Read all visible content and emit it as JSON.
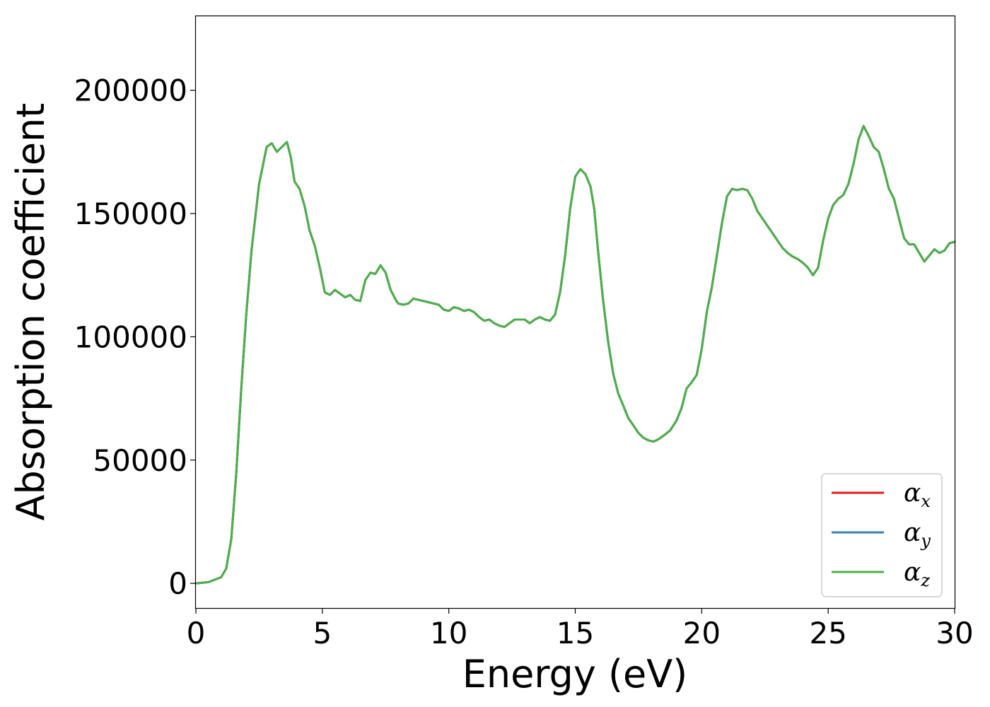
{
  "chart_data": {
    "type": "line",
    "title": "",
    "xlabel": "Energy (eV)",
    "ylabel": "Absorption coefficient",
    "xlim": [
      0,
      30
    ],
    "ylim": [
      -10000,
      230000
    ],
    "xticks": [
      0,
      5,
      10,
      15,
      20,
      25,
      30
    ],
    "yticks": [
      0,
      50000,
      100000,
      150000,
      200000
    ],
    "xtick_labels": [
      "0",
      "5",
      "10",
      "15",
      "20",
      "25",
      "30"
    ],
    "ytick_labels": [
      "0",
      "50000",
      "100000",
      "150000",
      "200000"
    ],
    "grid": false,
    "legend_position": "bottom-right",
    "x": [
      0,
      0.5,
      1.0,
      1.2,
      1.4,
      1.6,
      1.8,
      2.0,
      2.2,
      2.5,
      2.8,
      3.0,
      3.2,
      3.4,
      3.6,
      3.75,
      3.9,
      4.1,
      4.3,
      4.5,
      4.7,
      4.9,
      5.1,
      5.3,
      5.5,
      5.7,
      5.9,
      6.1,
      6.3,
      6.5,
      6.7,
      6.9,
      7.1,
      7.3,
      7.5,
      7.7,
      7.9,
      8.0,
      8.2,
      8.4,
      8.6,
      8.8,
      9.0,
      9.2,
      9.4,
      9.6,
      9.8,
      10.0,
      10.2,
      10.4,
      10.6,
      10.8,
      11.0,
      11.2,
      11.4,
      11.6,
      11.8,
      12.0,
      12.2,
      12.4,
      12.6,
      12.8,
      13.0,
      13.2,
      13.4,
      13.6,
      13.8,
      14.0,
      14.2,
      14.4,
      14.6,
      14.8,
      15.0,
      15.2,
      15.4,
      15.6,
      15.75,
      15.9,
      16.1,
      16.3,
      16.5,
      16.7,
      16.9,
      17.1,
      17.3,
      17.5,
      17.7,
      17.9,
      18.1,
      18.3,
      18.5,
      18.75,
      19.0,
      19.2,
      19.4,
      19.6,
      19.8,
      20.0,
      20.2,
      20.4,
      20.6,
      20.8,
      21.0,
      21.2,
      21.4,
      21.6,
      21.8,
      22.0,
      22.2,
      22.4,
      22.6,
      22.8,
      23.0,
      23.2,
      23.4,
      23.6,
      23.8,
      24.0,
      24.2,
      24.4,
      24.6,
      24.8,
      25.0,
      25.2,
      25.4,
      25.6,
      25.8,
      26.0,
      26.2,
      26.4,
      26.6,
      26.8,
      27.0,
      27.2,
      27.4,
      27.6,
      27.8,
      28.0,
      28.2,
      28.4,
      28.6,
      28.8,
      29.0,
      29.2,
      29.4,
      29.6,
      29.8,
      30.0
    ],
    "series": [
      {
        "name": "αx",
        "color": "#e41a1c",
        "values": [
          0,
          500,
          2500,
          6000,
          18000,
          45000,
          80000,
          110000,
          135000,
          162000,
          177000,
          178500,
          175000,
          177000,
          179000,
          173000,
          163000,
          160000,
          153000,
          143000,
          137000,
          128000,
          118000,
          117000,
          119000,
          117500,
          116000,
          117000,
          115000,
          114500,
          123000,
          126000,
          125500,
          129000,
          126000,
          119000,
          115000,
          113500,
          113000,
          113500,
          115500,
          115000,
          114500,
          114000,
          113500,
          113000,
          111000,
          110500,
          112000,
          111500,
          110500,
          111000,
          110000,
          108000,
          106500,
          107000,
          105500,
          104500,
          104000,
          105500,
          107000,
          107000,
          107000,
          105500,
          107000,
          108000,
          107000,
          106500,
          109000,
          118000,
          133000,
          152000,
          165000,
          168000,
          166000,
          161000,
          152000,
          135000,
          115000,
          98000,
          85000,
          77000,
          72000,
          67000,
          64000,
          61000,
          59000,
          58000,
          57500,
          58500,
          60000,
          62000,
          66000,
          71000,
          79000,
          81500,
          84500,
          95000,
          110000,
          120000,
          133000,
          146000,
          157000,
          160000,
          159500,
          160000,
          159500,
          156000,
          151000,
          148000,
          145000,
          142000,
          139000,
          136000,
          134000,
          132500,
          131500,
          130000,
          128000,
          125000,
          128000,
          139000,
          148000,
          153500,
          156000,
          157500,
          162000,
          170000,
          180000,
          185500,
          181500,
          177000,
          175000,
          168000,
          160000,
          156000,
          148000,
          140000,
          137500,
          137500,
          134000,
          130500,
          133000,
          135500,
          134000,
          135000,
          138000,
          138500
        ]
      },
      {
        "name": "αy",
        "color": "#377eb8",
        "values": [
          0,
          500,
          2500,
          6000,
          18000,
          45000,
          80000,
          110000,
          135000,
          162000,
          177000,
          178500,
          175000,
          177000,
          179000,
          173000,
          163000,
          160000,
          153000,
          143000,
          137000,
          128000,
          118000,
          117000,
          119000,
          117500,
          116000,
          117000,
          115000,
          114500,
          123000,
          126000,
          125500,
          129000,
          126000,
          119000,
          115000,
          113500,
          113000,
          113500,
          115500,
          115000,
          114500,
          114000,
          113500,
          113000,
          111000,
          110500,
          112000,
          111500,
          110500,
          111000,
          110000,
          108000,
          106500,
          107000,
          105500,
          104500,
          104000,
          105500,
          107000,
          107000,
          107000,
          105500,
          107000,
          108000,
          107000,
          106500,
          109000,
          118000,
          133000,
          152000,
          165000,
          168000,
          166000,
          161000,
          152000,
          135000,
          115000,
          98000,
          85000,
          77000,
          72000,
          67000,
          64000,
          61000,
          59000,
          58000,
          57500,
          58500,
          60000,
          62000,
          66000,
          71000,
          79000,
          81500,
          84500,
          95000,
          110000,
          120000,
          133000,
          146000,
          157000,
          160000,
          159500,
          160000,
          159500,
          156000,
          151000,
          148000,
          145000,
          142000,
          139000,
          136000,
          134000,
          132500,
          131500,
          130000,
          128000,
          125000,
          128000,
          139000,
          148000,
          153500,
          156000,
          157500,
          162000,
          170000,
          180000,
          185500,
          181500,
          177000,
          175000,
          168000,
          160000,
          156000,
          148000,
          140000,
          137500,
          137500,
          134000,
          130500,
          133000,
          135500,
          134000,
          135000,
          138000,
          138500
        ]
      },
      {
        "name": "αz",
        "color": "#4daf4a",
        "values": [
          0,
          500,
          2500,
          6000,
          18000,
          45000,
          80000,
          110000,
          135000,
          162000,
          177000,
          178500,
          175000,
          177000,
          179000,
          173000,
          163000,
          160000,
          153000,
          143000,
          137000,
          128000,
          118000,
          117000,
          119000,
          117500,
          116000,
          117000,
          115000,
          114500,
          123000,
          126000,
          125500,
          129000,
          126000,
          119000,
          115000,
          113500,
          113000,
          113500,
          115500,
          115000,
          114500,
          114000,
          113500,
          113000,
          111000,
          110500,
          112000,
          111500,
          110500,
          111000,
          110000,
          108000,
          106500,
          107000,
          105500,
          104500,
          104000,
          105500,
          107000,
          107000,
          107000,
          105500,
          107000,
          108000,
          107000,
          106500,
          109000,
          118000,
          133000,
          152000,
          165000,
          168000,
          166000,
          161000,
          152000,
          135000,
          115000,
          98000,
          85000,
          77000,
          72000,
          67000,
          64000,
          61000,
          59000,
          58000,
          57500,
          58500,
          60000,
          62000,
          66000,
          71000,
          79000,
          81500,
          84500,
          95000,
          110000,
          120000,
          133000,
          146000,
          157000,
          160000,
          159500,
          160000,
          159500,
          156000,
          151000,
          148000,
          145000,
          142000,
          139000,
          136000,
          134000,
          132500,
          131500,
          130000,
          128000,
          125000,
          128000,
          139000,
          148000,
          153500,
          156000,
          157500,
          162000,
          170000,
          180000,
          185500,
          181500,
          177000,
          175000,
          168000,
          160000,
          156000,
          148000,
          140000,
          137500,
          137500,
          134000,
          130500,
          133000,
          135500,
          134000,
          135000,
          138000,
          138500
        ]
      }
    ]
  }
}
